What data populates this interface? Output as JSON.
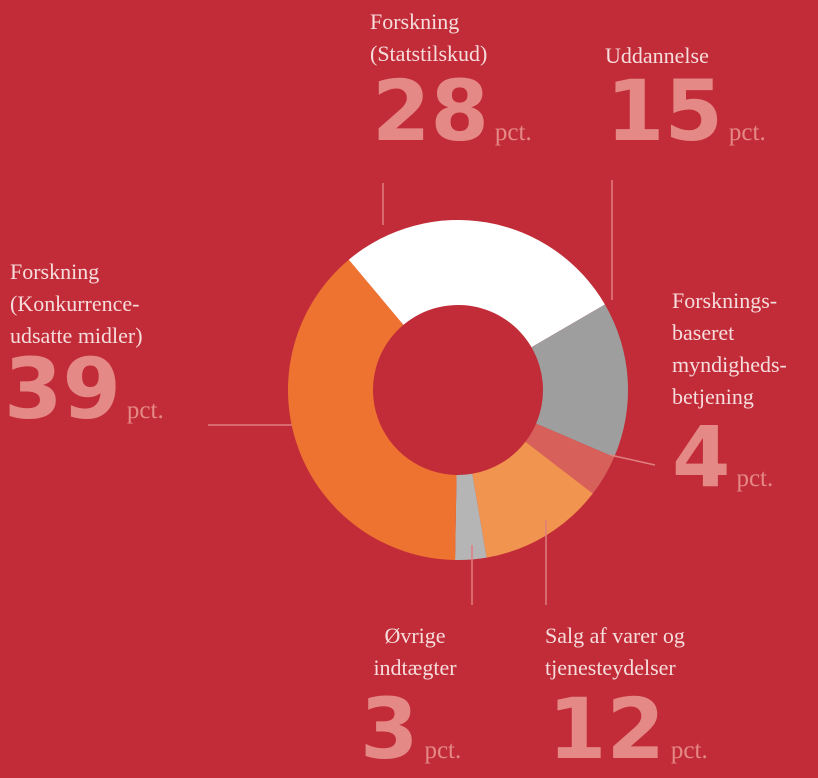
{
  "chart_data": {
    "type": "donut",
    "categories": [
      "Forskning\n(Statstilskud)",
      "Uddannelse",
      "Forsknings-\nbaseret\nmyndigheds-\nbetjening",
      "Salg af varer og\ntjenesteydelser",
      "Øvrige\nindtægter",
      "Forskning\n(Konkurrence-\nudsatte midler)"
    ],
    "values": [
      28,
      15,
      4,
      12,
      3,
      39
    ],
    "unit": "pct.",
    "colors": [
      "#ffffff",
      "#9e9e9e",
      "#d8605a",
      "#f0944f",
      "#b5b5b5",
      "#ee7330"
    ]
  }
}
